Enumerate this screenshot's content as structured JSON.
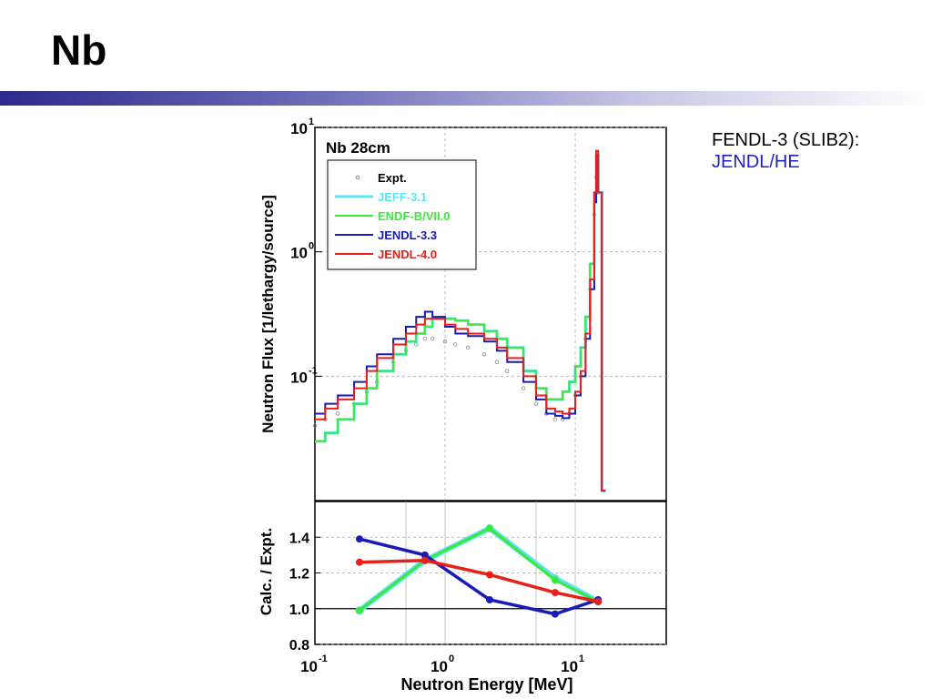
{
  "slide": {
    "title": "Nb",
    "note_line1": "FENDL-3 (SLIB2):",
    "note_line2": "JENDL/HE"
  },
  "chart_data": [
    {
      "type": "line",
      "title": "Nb 28cm",
      "xlabel": "",
      "ylabel": "Neutron Flux [1/lethargy/source]",
      "xscale": "log",
      "yscale": "log",
      "xlim": [
        0.1,
        50
      ],
      "ylim": [
        0.01,
        10
      ],
      "grid": true,
      "legend_position": "top-left",
      "y_ticks": [
        {
          "base": "10",
          "exp": "1",
          "value": 10
        },
        {
          "base": "10",
          "exp": "0",
          "value": 1
        },
        {
          "base": "10",
          "exp": "-1",
          "value": 0.1
        }
      ],
      "series": [
        {
          "name": "Expt.",
          "style": "markers",
          "color": "#888888",
          "x": [
            0.1,
            0.12,
            0.15,
            0.2,
            0.25,
            0.3,
            0.4,
            0.5,
            0.6,
            0.7,
            0.8,
            1.0,
            1.2,
            1.5,
            2,
            2.5,
            3,
            4,
            5,
            6,
            7,
            8,
            9,
            10,
            11,
            12,
            13,
            14,
            14.5,
            15
          ],
          "y": [
            0.04,
            0.045,
            0.05,
            0.06,
            0.075,
            0.09,
            0.13,
            0.16,
            0.18,
            0.2,
            0.2,
            0.19,
            0.18,
            0.17,
            0.15,
            0.13,
            0.11,
            0.08,
            0.06,
            0.05,
            0.045,
            0.045,
            0.05,
            0.07,
            0.1,
            0.2,
            0.5,
            2.0,
            4.0,
            3.0
          ]
        },
        {
          "name": "JEFF-3.1",
          "style": "step",
          "color": "#5ee3f7",
          "x": [
            0.1,
            0.12,
            0.15,
            0.2,
            0.25,
            0.3,
            0.4,
            0.5,
            0.6,
            0.7,
            0.8,
            1.0,
            1.2,
            1.5,
            2,
            2.5,
            3,
            4,
            5,
            6,
            7,
            8,
            9,
            10,
            11,
            12,
            13,
            14,
            14.5,
            15,
            16
          ],
          "y": [
            0.03,
            0.035,
            0.045,
            0.06,
            0.08,
            0.11,
            0.15,
            0.19,
            0.22,
            0.25,
            0.29,
            0.29,
            0.28,
            0.26,
            0.23,
            0.2,
            0.17,
            0.11,
            0.08,
            0.065,
            0.065,
            0.075,
            0.09,
            0.12,
            0.17,
            0.3,
            0.8,
            3.0,
            6.0,
            3.0,
            0.012
          ]
        },
        {
          "name": "ENDF-B/VII.0",
          "style": "step",
          "color": "#3de83d",
          "x": [
            0.1,
            0.12,
            0.15,
            0.2,
            0.25,
            0.3,
            0.4,
            0.5,
            0.6,
            0.7,
            0.8,
            1.0,
            1.2,
            1.5,
            2,
            2.5,
            3,
            4,
            5,
            6,
            7,
            8,
            9,
            10,
            11,
            12,
            13,
            14,
            14.5,
            15,
            16
          ],
          "y": [
            0.03,
            0.035,
            0.045,
            0.06,
            0.08,
            0.11,
            0.15,
            0.19,
            0.22,
            0.25,
            0.29,
            0.29,
            0.28,
            0.26,
            0.23,
            0.2,
            0.17,
            0.11,
            0.08,
            0.065,
            0.065,
            0.075,
            0.09,
            0.12,
            0.17,
            0.3,
            0.8,
            3.0,
            6.0,
            3.0,
            0.012
          ]
        },
        {
          "name": "JENDL-3.3",
          "style": "step",
          "color": "#1a1ab4",
          "x": [
            0.1,
            0.12,
            0.15,
            0.2,
            0.25,
            0.3,
            0.4,
            0.5,
            0.6,
            0.7,
            0.8,
            1.0,
            1.2,
            1.5,
            2,
            2.5,
            3,
            4,
            5,
            6,
            7,
            8,
            9,
            10,
            11,
            12,
            13,
            14,
            14.5,
            15,
            16
          ],
          "y": [
            0.05,
            0.06,
            0.07,
            0.09,
            0.12,
            0.15,
            0.2,
            0.25,
            0.3,
            0.33,
            0.3,
            0.25,
            0.22,
            0.21,
            0.19,
            0.16,
            0.13,
            0.09,
            0.065,
            0.05,
            0.048,
            0.046,
            0.05,
            0.07,
            0.1,
            0.2,
            0.5,
            2.5,
            6.0,
            3.0,
            0.012
          ]
        },
        {
          "name": "JENDL-4.0",
          "style": "step",
          "color": "#e8201a",
          "x": [
            0.1,
            0.12,
            0.15,
            0.2,
            0.25,
            0.3,
            0.4,
            0.5,
            0.6,
            0.7,
            0.8,
            1.0,
            1.2,
            1.5,
            2,
            2.5,
            3,
            4,
            5,
            6,
            7,
            8,
            9,
            10,
            11,
            12,
            13,
            14,
            14.5,
            15,
            16
          ],
          "y": [
            0.045,
            0.055,
            0.065,
            0.08,
            0.11,
            0.14,
            0.18,
            0.22,
            0.26,
            0.29,
            0.29,
            0.26,
            0.24,
            0.22,
            0.2,
            0.17,
            0.14,
            0.1,
            0.07,
            0.055,
            0.052,
            0.05,
            0.055,
            0.075,
            0.11,
            0.22,
            0.6,
            3.0,
            6.5,
            3.0,
            0.012
          ]
        }
      ]
    },
    {
      "type": "line",
      "title": "",
      "xlabel": "Neutron Energy [MeV]",
      "ylabel": "Calc. / Expt.",
      "xscale": "log",
      "xlim": [
        0.1,
        50
      ],
      "ylim": [
        0.8,
        1.6
      ],
      "grid": true,
      "reference_line": 1.0,
      "y_tick_labels": [
        "1.4",
        "1.2",
        "1.0",
        "0.8"
      ],
      "x_ticks": [
        {
          "base": "10",
          "exp": "-1",
          "value": 0.1
        },
        {
          "base": "10",
          "exp": "0",
          "value": 1
        },
        {
          "base": "10",
          "exp": "1",
          "value": 10
        }
      ],
      "series": [
        {
          "name": "JEFF-3.1",
          "color": "#5ee3f7",
          "x": [
            0.22,
            0.7,
            2.2,
            7,
            15
          ],
          "y": [
            0.99,
            1.27,
            1.45,
            1.17,
            1.04
          ]
        },
        {
          "name": "ENDF-B/VII.0",
          "color": "#3de83d",
          "x": [
            0.22,
            0.7,
            2.2,
            7,
            15
          ],
          "y": [
            0.99,
            1.27,
            1.45,
            1.16,
            1.04
          ]
        },
        {
          "name": "JENDL-3.3",
          "color": "#1a1ab4",
          "x": [
            0.22,
            0.7,
            2.2,
            7,
            15
          ],
          "y": [
            1.39,
            1.3,
            1.05,
            0.97,
            1.05
          ]
        },
        {
          "name": "JENDL-4.0",
          "color": "#e8201a",
          "x": [
            0.22,
            0.7,
            2.2,
            7,
            15
          ],
          "y": [
            1.26,
            1.27,
            1.19,
            1.09,
            1.04
          ]
        }
      ]
    }
  ]
}
